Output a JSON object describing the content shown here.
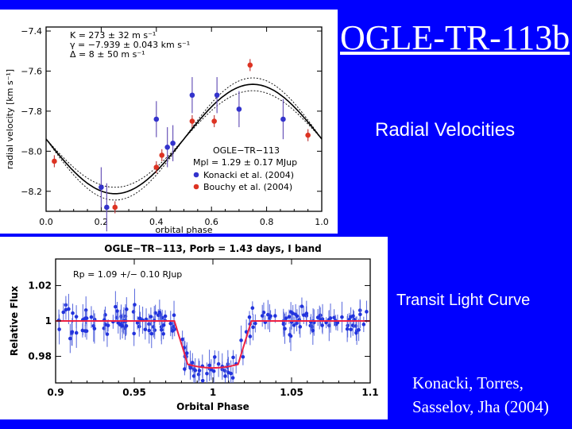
{
  "slide": {
    "title": "OGLE-TR-113b",
    "label_rv": "Radial Velocities",
    "label_lc": "Transit Light Curve",
    "citation_line1": "Konacki, Torres,",
    "citation_line2": "Sasselov, Jha (2004)"
  },
  "colors": {
    "background": "#0000ff",
    "konacki": "#3333cc",
    "bouchy": "#dd3322",
    "transit_fit": "#ee2244",
    "lc_points": "#2233dd"
  },
  "chart_data": [
    {
      "type": "scatter",
      "name": "radial-velocity",
      "xlabel": "orbital phase",
      "ylabel": "radial velocity [km s⁻¹]",
      "xlim": [
        0.0,
        1.0
      ],
      "ylim": [
        -8.3,
        -7.38
      ],
      "xticks": [
        0.0,
        0.2,
        0.4,
        0.6,
        0.8,
        1.0
      ],
      "xtick_labels": [
        "0.0",
        "0.2",
        "0.4",
        "0.6",
        "0.8",
        "1.0"
      ],
      "yticks": [
        -7.4,
        -7.6,
        -7.8,
        -8.0,
        -8.2
      ],
      "ytick_labels": [
        "−7.4",
        "−7.6",
        "−7.8",
        "−8.0",
        "−8.2"
      ],
      "params_text": [
        "K = 273 ± 32 m s⁻¹",
        "γ = −7.939 ± 0.043 km s⁻¹",
        "Δ = 8 ± 50 m s⁻¹"
      ],
      "planet_label": "OGLE−TR−113",
      "mass_text": "Mpl = 1.29 ± 0.17 MJup",
      "fit": {
        "gamma": -7.939,
        "K": 0.273,
        "sigma_K": 0.032
      },
      "legend": [
        "Konacki et al. (2004)",
        "Bouchy et al. (2004)"
      ],
      "series": [
        {
          "name": "Konacki et al. (2004)",
          "x": [
            0.2,
            0.22,
            0.4,
            0.46,
            0.44,
            0.53,
            0.62,
            0.7,
            0.86
          ],
          "y": [
            -8.18,
            -8.28,
            -7.84,
            -7.96,
            -7.98,
            -7.72,
            -7.72,
            -7.79,
            -7.84
          ],
          "err": [
            0.1,
            0.12,
            0.09,
            0.09,
            0.1,
            0.09,
            0.09,
            0.09,
            0.1
          ]
        },
        {
          "name": "Bouchy et al. (2004)",
          "x": [
            0.03,
            0.25,
            0.4,
            0.42,
            0.53,
            0.61,
            0.74,
            0.95
          ],
          "y": [
            -8.05,
            -8.28,
            -8.08,
            -8.02,
            -7.85,
            -7.85,
            -7.57,
            -7.92
          ],
          "err": [
            0.03,
            0.03,
            0.03,
            0.03,
            0.03,
            0.03,
            0.03,
            0.03
          ]
        }
      ]
    },
    {
      "type": "scatter",
      "name": "transit-light-curve",
      "title": "OGLE−TR−113, Porb = 1.43 days, I band",
      "xlabel": "Orbital Phase",
      "ylabel": "Relative Flux",
      "xlim": [
        0.9,
        1.1
      ],
      "ylim": [
        0.965,
        1.035
      ],
      "xticks": [
        0.9,
        0.95,
        1.0,
        1.05,
        1.1
      ],
      "xtick_labels": [
        "0.9",
        "0.95",
        "1",
        "1.05",
        "1.1"
      ],
      "yticks": [
        1.02,
        1.0,
        0.98
      ],
      "ytick_labels": [
        "1.02",
        "1",
        "0.98"
      ],
      "radius_text": "Rp = 1.09 +/− 0.10 RJup",
      "model": {
        "baseline": 1.0,
        "depth": 0.0245,
        "ingress_start": 0.9755,
        "full_start": 0.984,
        "full_end": 1.016,
        "egress_end": 1.0245
      },
      "scatter_sigma": 0.0055,
      "n_points": 190
    }
  ]
}
